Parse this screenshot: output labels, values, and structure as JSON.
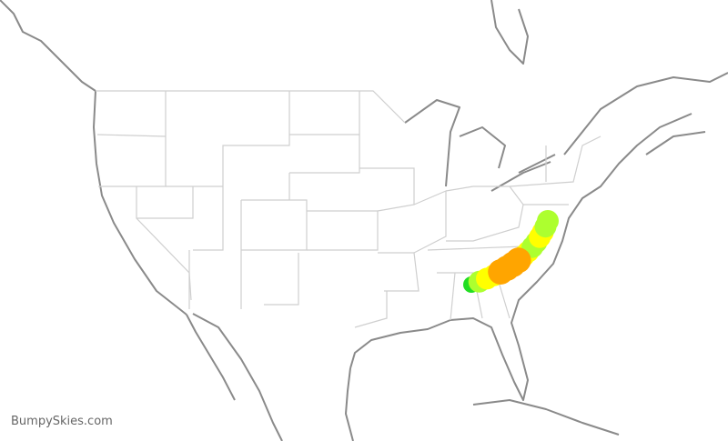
{
  "credit": "BumpySkies.com",
  "colors": {
    "coastline": "#8a8a8a",
    "state_border": "#cfcfcf",
    "smooth": "#22dd22",
    "light": "#adff2f",
    "moderate": "#ffff00",
    "severe": "#ffa500"
  },
  "route": {
    "levels": [
      "smooth",
      "light",
      "moderate",
      "moderate",
      "severe",
      "severe",
      "severe",
      "severe",
      "moderate",
      "moderate",
      "light",
      "light",
      "moderate",
      "moderate",
      "light",
      "light"
    ]
  }
}
